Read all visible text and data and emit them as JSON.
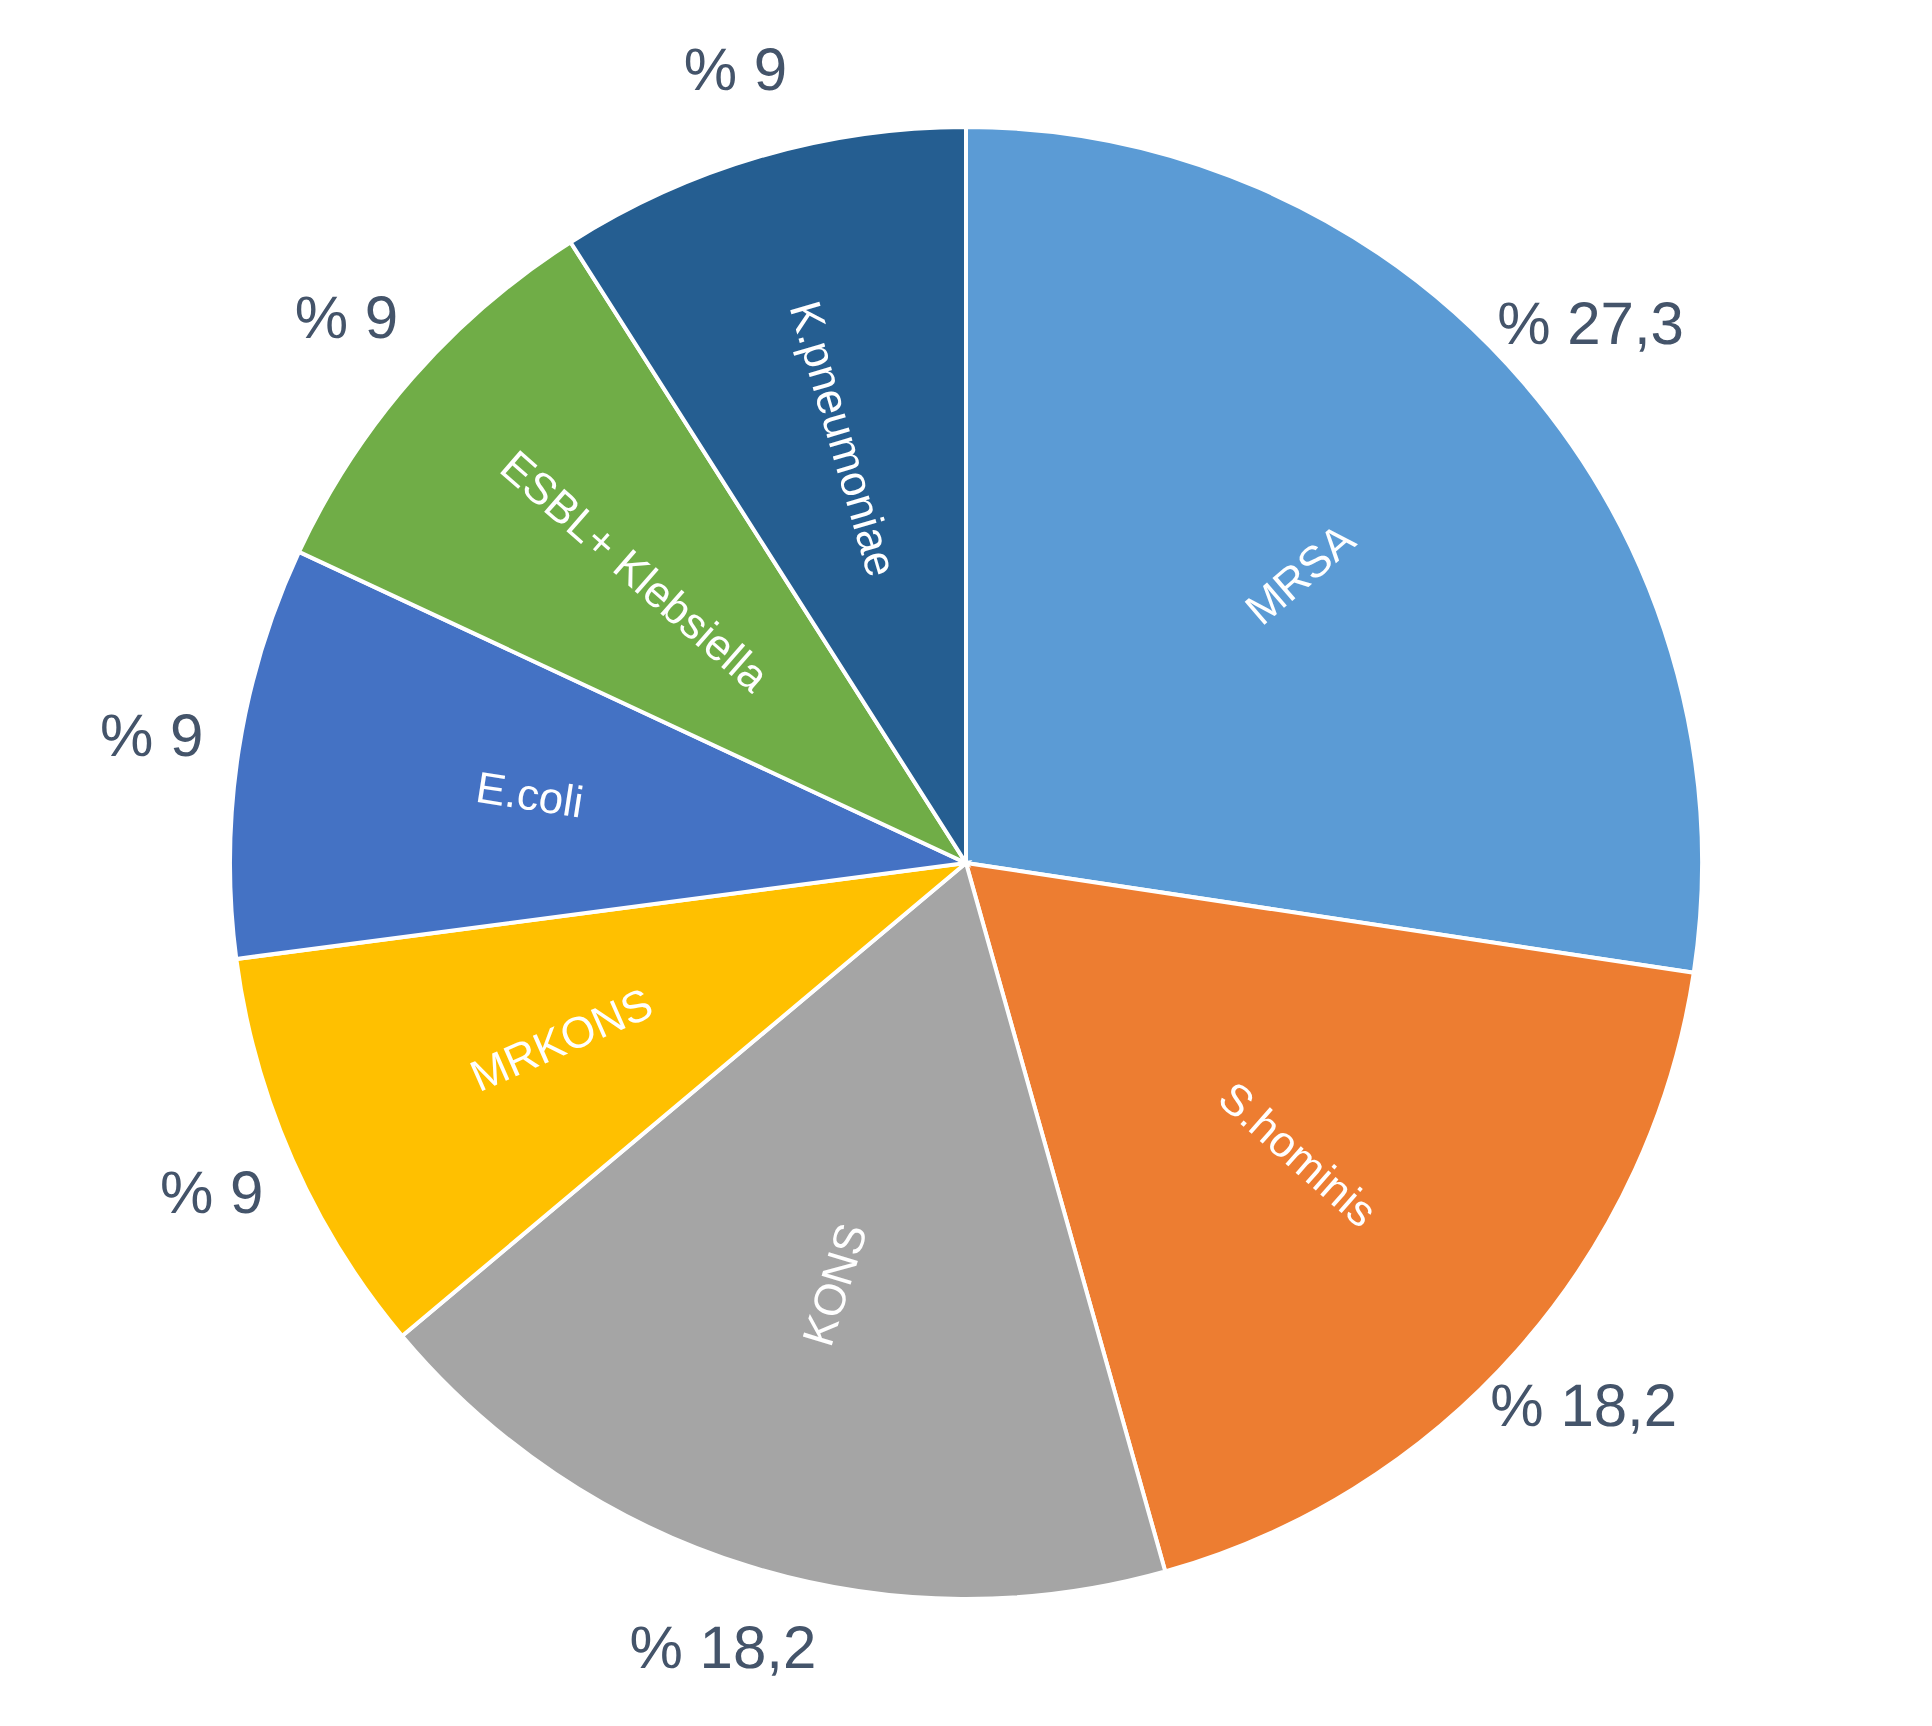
{
  "chart_data": {
    "type": "pie",
    "categories": [
      "MRSA",
      "S.hominis",
      "KONS",
      "MRKONS",
      "E.coli",
      "ESBL+ Klebsiella",
      "K.pneumoniae"
    ],
    "values": [
      27.3,
      18.2,
      18.2,
      9,
      9,
      9,
      9
    ],
    "colors": [
      "#5b9bd5",
      "#ed7d31",
      "#a5a5a5",
      "#ffc000",
      "#4472c4",
      "#70ad47",
      "#255e91"
    ],
    "value_labels": [
      "% 27,3",
      "% 18,2",
      "% 18,2",
      "% 9",
      "% 9",
      "% 9",
      "% 9"
    ]
  }
}
